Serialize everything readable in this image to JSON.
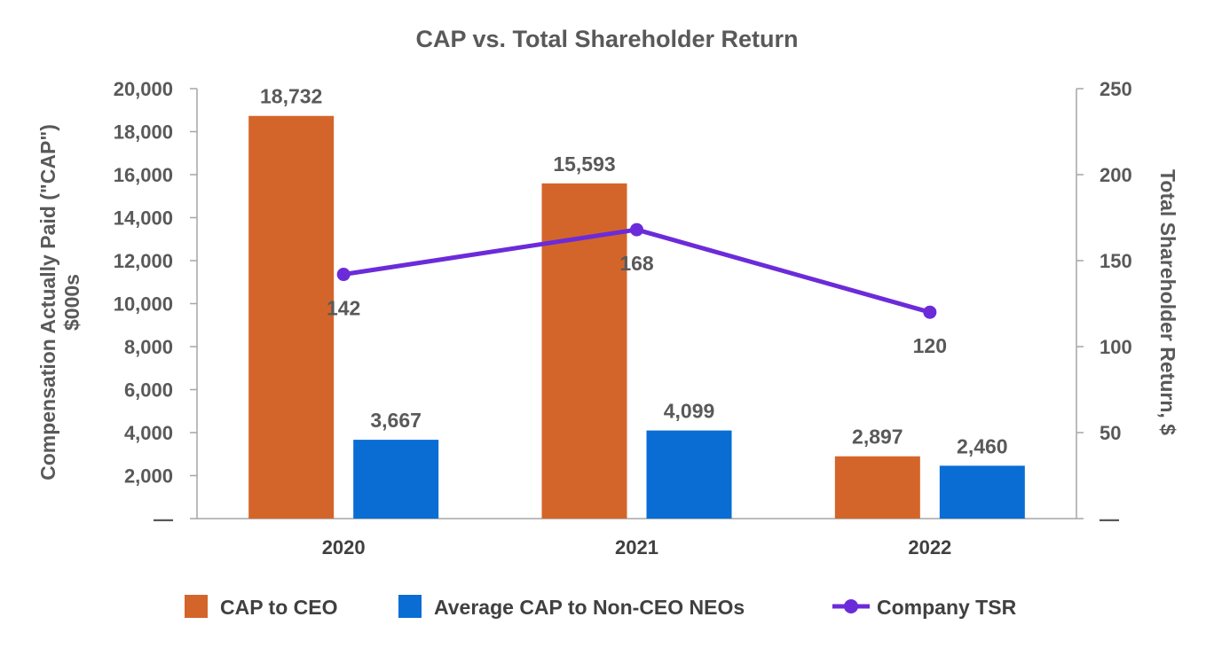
{
  "chart_data": {
    "type": "bar",
    "title": "CAP vs. Total Shareholder Return",
    "categories": [
      "2020",
      "2021",
      "2022"
    ],
    "series": [
      {
        "name": "CAP to CEO",
        "kind": "bar",
        "axis": "left",
        "color": "#D4652A",
        "values": [
          18732,
          15593,
          2897
        ],
        "labels": [
          "18,732",
          "15,593",
          "2,897"
        ]
      },
      {
        "name": "Average CAP to Non-CEO NEOs",
        "kind": "bar",
        "axis": "left",
        "color": "#0A6DD4",
        "values": [
          3667,
          4099,
          2460
        ],
        "labels": [
          "3,667",
          "4,099",
          "2,460"
        ]
      },
      {
        "name": "Company TSR",
        "kind": "line",
        "axis": "right",
        "color": "#6C2BD9",
        "values": [
          142,
          168,
          120
        ],
        "labels": [
          "142",
          "168",
          "120"
        ]
      }
    ],
    "y_left": {
      "label_line1": "Compensation Actually Paid (\"CAP\")",
      "label_line2": "$000s",
      "ylim": [
        0,
        20000
      ],
      "ticks": [
        0,
        2000,
        4000,
        6000,
        8000,
        10000,
        12000,
        14000,
        16000,
        18000,
        20000
      ],
      "tick_labels": [
        "—",
        "2,000",
        "4,000",
        "6,000",
        "8,000",
        "10,000",
        "12,000",
        "14,000",
        "16,000",
        "18,000",
        "20,000"
      ]
    },
    "y_right": {
      "label": "Total Shareholder Return, $",
      "ylim": [
        0,
        250
      ],
      "ticks": [
        0,
        50,
        100,
        150,
        200,
        250
      ],
      "tick_labels": [
        "—",
        "50",
        "100",
        "150",
        "200",
        "250"
      ]
    },
    "legend": {
      "position": "bottom"
    },
    "grid": false
  }
}
